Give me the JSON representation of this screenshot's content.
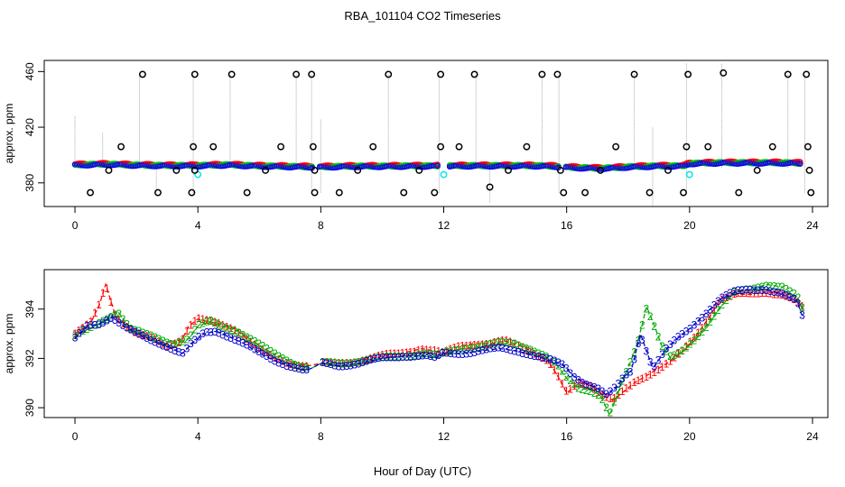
{
  "figure": {
    "title": "RBA_101104  CO2 Timeseries",
    "xlabel": "Hour of Day (UTC)"
  },
  "chart_data": [
    {
      "type": "scatter",
      "name": "top-panel",
      "ylabel": "approx. ppm",
      "xlim": [
        -1,
        24.5
      ],
      "ylim": [
        363,
        468
      ],
      "x_ticks": [
        0,
        4,
        8,
        12,
        16,
        20,
        24
      ],
      "y_ticks": [
        380,
        420,
        460
      ],
      "colors": {
        "series1": "#ff0000",
        "series2": "#00cc00",
        "series3": "#0000ff",
        "outlier": "#000000",
        "cyan": "#00e5ee",
        "spike": "#aaaaaa"
      },
      "baseline": {
        "x": [
          0,
          1,
          2,
          3,
          4,
          5,
          6,
          7,
          8,
          9,
          10,
          11,
          12,
          13,
          14,
          15,
          15.8,
          16,
          17,
          17.5,
          18,
          19,
          19.8,
          20,
          21,
          22,
          23,
          23.6
        ],
        "y": [
          393,
          393.5,
          392.8,
          392.5,
          392.5,
          393,
          392.2,
          391.8,
          391.5,
          392,
          392,
          392.2,
          392.2,
          392.4,
          392.4,
          392.4,
          391.8,
          391.3,
          390.5,
          390.8,
          391.5,
          392.2,
          392.2,
          394,
          394.5,
          394.5,
          394.5,
          394.2
        ]
      },
      "outliers": [
        [
          0.5,
          373
        ],
        [
          1.5,
          406
        ],
        [
          2.2,
          458
        ],
        [
          2.7,
          373
        ],
        [
          3.3,
          389
        ],
        [
          3.8,
          373
        ],
        [
          3.85,
          406
        ],
        [
          3.9,
          458
        ],
        [
          3.9,
          389
        ],
        [
          4.5,
          406
        ],
        [
          5.1,
          458
        ],
        [
          5.6,
          373
        ],
        [
          6.2,
          389
        ],
        [
          6.7,
          406
        ],
        [
          7.2,
          458
        ],
        [
          7.7,
          458
        ],
        [
          7.75,
          406
        ],
        [
          7.8,
          373
        ],
        [
          7.8,
          389
        ],
        [
          8.6,
          373
        ],
        [
          9.2,
          389
        ],
        [
          9.7,
          406
        ],
        [
          10.2,
          458
        ],
        [
          10.7,
          373
        ],
        [
          11.2,
          389
        ],
        [
          11.7,
          373
        ],
        [
          11.9,
          406
        ],
        [
          11.9,
          458
        ],
        [
          12.5,
          406
        ],
        [
          13.0,
          458
        ],
        [
          13.5,
          377
        ],
        [
          14.1,
          389
        ],
        [
          14.7,
          406
        ],
        [
          15.2,
          458
        ],
        [
          15.7,
          458
        ],
        [
          15.8,
          389
        ],
        [
          15.9,
          373
        ],
        [
          16.6,
          373
        ],
        [
          17.1,
          389
        ],
        [
          17.6,
          406
        ],
        [
          18.2,
          458
        ],
        [
          18.7,
          373
        ],
        [
          19.3,
          389
        ],
        [
          19.8,
          373
        ],
        [
          19.9,
          406
        ],
        [
          19.95,
          458
        ],
        [
          20.6,
          406
        ],
        [
          21.1,
          459
        ],
        [
          21.6,
          373
        ],
        [
          22.2,
          389
        ],
        [
          22.7,
          406
        ],
        [
          23.2,
          458
        ],
        [
          23.8,
          458
        ],
        [
          23.85,
          406
        ],
        [
          23.9,
          389
        ],
        [
          23.95,
          373
        ],
        [
          1.1,
          389
        ]
      ],
      "cyan_points": [
        [
          4.0,
          386
        ],
        [
          12.0,
          386
        ],
        [
          20.0,
          386
        ]
      ],
      "spikes": [
        {
          "x": 0.0,
          "ymin": 391,
          "ymax": 428
        },
        {
          "x": 0.9,
          "ymin": 391,
          "ymax": 416
        },
        {
          "x": 2.1,
          "ymin": 391,
          "ymax": 458
        },
        {
          "x": 2.65,
          "ymin": 373,
          "ymax": 393
        },
        {
          "x": 3.85,
          "ymin": 373,
          "ymax": 458
        },
        {
          "x": 5.05,
          "ymin": 391,
          "ymax": 458
        },
        {
          "x": 7.2,
          "ymin": 391,
          "ymax": 458
        },
        {
          "x": 7.7,
          "ymin": 373,
          "ymax": 458
        },
        {
          "x": 8.0,
          "ymin": 373,
          "ymax": 426
        },
        {
          "x": 10.2,
          "ymin": 391,
          "ymax": 458
        },
        {
          "x": 11.85,
          "ymin": 373,
          "ymax": 458
        },
        {
          "x": 13.05,
          "ymin": 391,
          "ymax": 458
        },
        {
          "x": 13.5,
          "ymin": 366,
          "ymax": 392
        },
        {
          "x": 15.2,
          "ymin": 391,
          "ymax": 458
        },
        {
          "x": 15.75,
          "ymin": 373,
          "ymax": 458
        },
        {
          "x": 18.2,
          "ymin": 391,
          "ymax": 458
        },
        {
          "x": 18.8,
          "ymin": 364,
          "ymax": 420
        },
        {
          "x": 19.9,
          "ymin": 373,
          "ymax": 466
        },
        {
          "x": 21.05,
          "ymin": 391,
          "ymax": 466
        },
        {
          "x": 23.2,
          "ymin": 391,
          "ymax": 458
        },
        {
          "x": 23.75,
          "ymin": 373,
          "ymax": 458
        }
      ]
    },
    {
      "type": "line",
      "name": "bottom-panel",
      "ylabel": "approx. ppm",
      "xlim": [
        -1,
        24.5
      ],
      "ylim": [
        389.6,
        395.6
      ],
      "x_ticks": [
        0,
        4,
        8,
        12,
        16,
        20,
        24
      ],
      "y_ticks": [
        390,
        392,
        394
      ],
      "series": [
        {
          "name": "1",
          "color": "#ff0000",
          "x": [
            0,
            0.5,
            0.8,
            1.0,
            1.3,
            1.6,
            2.0,
            2.5,
            3.0,
            3.5,
            3.7,
            4.0,
            4.3,
            4.7,
            5.2,
            5.6,
            6.0,
            6.5,
            7.0,
            7.6,
            8.0,
            8.6,
            9.2,
            10.0,
            10.6,
            11.3,
            11.7,
            12.0,
            12.5,
            13.0,
            13.5,
            14.0,
            14.5,
            15.0,
            15.4,
            15.7,
            16.0,
            16.4,
            16.8,
            17.2,
            17.5,
            17.8,
            18.2,
            18.6,
            19.0,
            19.4,
            19.8,
            20.2,
            20.6,
            21.0,
            21.5,
            22.0,
            22.5,
            23.0,
            23.5,
            23.7
          ],
          "y": [
            393.0,
            393.4,
            394.2,
            395.0,
            393.8,
            393.4,
            393.0,
            392.8,
            392.5,
            392.8,
            393.3,
            393.6,
            393.5,
            393.4,
            393.2,
            392.8,
            392.4,
            392.0,
            391.8,
            391.7,
            391.8,
            391.8,
            391.9,
            392.1,
            392.2,
            392.4,
            392.3,
            392.2,
            392.5,
            392.6,
            392.6,
            392.7,
            392.5,
            392.2,
            391.9,
            391.3,
            390.6,
            391.0,
            390.9,
            390.5,
            390.3,
            390.6,
            391.0,
            391.3,
            391.6,
            391.9,
            392.3,
            392.9,
            393.6,
            394.4,
            394.6,
            394.6,
            394.7,
            394.6,
            394.3,
            394.0
          ]
        },
        {
          "name": "2",
          "color": "#00aa00",
          "x": [
            0,
            0.5,
            1.0,
            1.4,
            1.8,
            2.2,
            2.7,
            3.2,
            3.7,
            4.0,
            4.4,
            4.8,
            5.3,
            5.8,
            6.3,
            6.8,
            7.3,
            7.7,
            8.0,
            8.6,
            9.3,
            10.0,
            10.7,
            11.4,
            11.8,
            12.0,
            12.6,
            13.2,
            13.8,
            14.3,
            14.8,
            15.3,
            15.7,
            16.0,
            16.4,
            16.8,
            17.1,
            17.4,
            17.7,
            18.0,
            18.3,
            18.6,
            18.8,
            19.1,
            19.4,
            19.8,
            20.2,
            20.6,
            21.0,
            21.5,
            22.0,
            22.5,
            23.0,
            23.5,
            23.7
          ],
          "y": [
            392.9,
            393.2,
            393.6,
            393.9,
            393.2,
            393.0,
            392.8,
            392.6,
            392.8,
            393.3,
            393.5,
            393.3,
            393.1,
            392.7,
            392.3,
            392.0,
            391.7,
            391.6,
            391.8,
            391.8,
            391.9,
            392.0,
            392.1,
            392.2,
            392.1,
            392.2,
            392.4,
            392.5,
            392.6,
            392.6,
            392.4,
            392.1,
            391.7,
            391.2,
            390.8,
            390.7,
            390.5,
            389.7,
            390.7,
            391.6,
            392.6,
            394.1,
            393.5,
            392.5,
            392.0,
            392.3,
            392.8,
            393.4,
            394.1,
            394.7,
            394.8,
            395.0,
            394.9,
            394.5,
            393.9
          ]
        },
        {
          "name": "3",
          "color": "#0000cc",
          "x": [
            0,
            0.4,
            0.8,
            1.2,
            1.6,
            2.0,
            2.5,
            3.0,
            3.5,
            3.8,
            4.2,
            4.6,
            5.0,
            5.5,
            6.0,
            6.5,
            7.0,
            7.5,
            7.7,
            8.0,
            8.6,
            9.3,
            10.0,
            10.7,
            11.4,
            11.7,
            12.0,
            12.6,
            13.2,
            13.8,
            14.4,
            15.0,
            15.5,
            15.9,
            16.2,
            16.6,
            17.0,
            17.3,
            17.6,
            17.9,
            18.1,
            18.4,
            18.8,
            19.2,
            19.6,
            20.0,
            20.5,
            21.0,
            21.5,
            22.0,
            22.5,
            23.0,
            23.5,
            23.7
          ],
          "y": [
            392.8,
            393.3,
            393.4,
            393.7,
            393.3,
            393.0,
            392.7,
            392.5,
            392.2,
            392.6,
            393.0,
            393.1,
            392.9,
            392.6,
            392.2,
            391.9,
            391.7,
            391.5,
            391.6,
            391.8,
            391.7,
            391.8,
            392.0,
            392.1,
            392.1,
            392.0,
            392.2,
            392.2,
            392.3,
            392.4,
            392.3,
            392.1,
            391.9,
            391.7,
            391.3,
            391.0,
            390.8,
            390.5,
            390.8,
            391.3,
            391.5,
            393.0,
            391.6,
            392.3,
            392.8,
            393.2,
            393.8,
            394.4,
            394.7,
            394.8,
            394.8,
            394.6,
            394.3,
            393.6
          ]
        }
      ]
    }
  ]
}
